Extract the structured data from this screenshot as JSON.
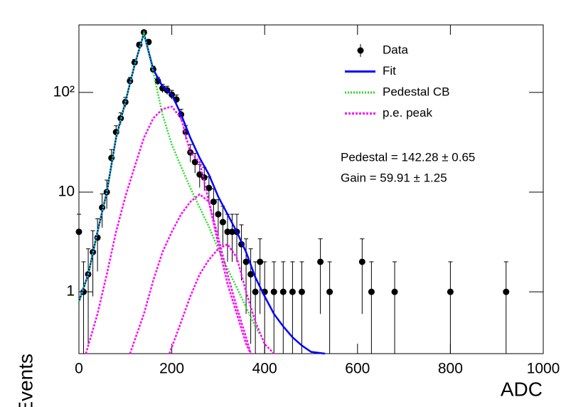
{
  "chart_data": {
    "type": "line",
    "x_label": "ADC",
    "y_label": "Events",
    "log_y": true,
    "xlim": [
      0,
      1000
    ],
    "ylim": [
      0.24,
      475
    ],
    "xticks": [
      0,
      200,
      400,
      600,
      800,
      1000
    ],
    "yticks": [
      1,
      10,
      {
        "value": 100,
        "label": "10²"
      }
    ],
    "legend": "upper right",
    "annotations": [
      "Pedestal = 142.28 ± 0.65",
      "Gain = 59.91 ± 1.25"
    ],
    "series": [
      {
        "name": "Data",
        "type": "errorbar",
        "color": "#000000",
        "x": [
          0,
          10,
          20,
          30,
          40,
          50,
          60,
          70,
          80,
          90,
          100,
          110,
          120,
          130,
          140,
          150,
          160,
          170,
          180,
          190,
          200,
          210,
          220,
          230,
          240,
          250,
          260,
          270,
          280,
          290,
          300,
          310,
          320,
          330,
          340,
          350,
          360,
          370,
          380,
          390,
          400,
          420,
          440,
          460,
          480,
          520,
          540,
          610,
          630,
          680,
          800,
          920
        ],
        "values": [
          4,
          1,
          1.5,
          2.5,
          3.5,
          7,
          10,
          22,
          40,
          55,
          80,
          130,
          200,
          300,
          400,
          320,
          170,
          130,
          110,
          105,
          95,
          85,
          60,
          40,
          25,
          20,
          15,
          14,
          11,
          8,
          6,
          5,
          4,
          4,
          4,
          3,
          2,
          1.5,
          1,
          2,
          1,
          1,
          1,
          1,
          1,
          2,
          1,
          2,
          1,
          1,
          1,
          1
        ],
        "errors": [
          2,
          1,
          1.2,
          1.6,
          1.9,
          2.6,
          3.2,
          4.7,
          6.3,
          7.4,
          9,
          11.4,
          14,
          17,
          20,
          18,
          13,
          11.4,
          10.5,
          10.2,
          9.7,
          9.2,
          7.7,
          6.3,
          5,
          4.5,
          3.9,
          3.7,
          3.3,
          2.8,
          2.4,
          2.2,
          2,
          2,
          2,
          1.7,
          1.4,
          1.2,
          1,
          1.4,
          1,
          1,
          1,
          1,
          1,
          1.4,
          1,
          1.4,
          1,
          1,
          1,
          1
        ]
      },
      {
        "name": "Fit",
        "type": "line",
        "color": "#0000ff",
        "dash": "none",
        "x": [
          0,
          20,
          40,
          60,
          80,
          100,
          120,
          140,
          160,
          180,
          200,
          220,
          240,
          260,
          280,
          300,
          320,
          340,
          360,
          380,
          400,
          420,
          440,
          460,
          480,
          500,
          530
        ],
        "values": [
          0.8,
          1.5,
          4,
          10,
          35,
          80,
          190,
          390,
          170,
          115,
          95,
          60,
          35,
          22,
          15,
          9,
          6,
          4,
          2.5,
          1.4,
          0.9,
          0.6,
          0.45,
          0.35,
          0.29,
          0.25,
          0.24
        ]
      },
      {
        "name": "Pedestal CB",
        "type": "line",
        "color": "#22dd22",
        "dash": "2 2",
        "x": [
          0,
          20,
          40,
          60,
          80,
          100,
          120,
          140,
          160,
          180,
          200,
          220,
          240,
          260,
          280,
          300,
          320,
          340,
          360,
          380,
          390
        ],
        "values": [
          0.8,
          1.5,
          4,
          10,
          35,
          80,
          190,
          390,
          160,
          60,
          30,
          18,
          11,
          7,
          4.5,
          2.7,
          1.7,
          1.1,
          0.7,
          0.45,
          0.37
        ]
      },
      {
        "name": "p.e. peak",
        "type": "line",
        "color": "#ff00ff",
        "dash": "3 2",
        "x": [
          15,
          40,
          60,
          80,
          100,
          120,
          140,
          160,
          180,
          200,
          220,
          240,
          260,
          280,
          300,
          320,
          340,
          360,
          370,
          null,
          110,
          140,
          160,
          180,
          200,
          220,
          240,
          260,
          280,
          300,
          320,
          340,
          360,
          370,
          null,
          195,
          220,
          240,
          260,
          280,
          300,
          320,
          340,
          360,
          380,
          400,
          420
        ],
        "values": [
          0.24,
          0.6,
          1.5,
          4,
          9,
          18,
          35,
          55,
          68,
          72,
          55,
          25,
          20,
          8,
          3.5,
          1.5,
          0.7,
          0.35,
          0.24,
          null,
          0.24,
          0.6,
          1.3,
          2.5,
          4,
          6,
          8,
          9.5,
          8,
          3,
          1.2,
          0.6,
          0.3,
          0.24,
          null,
          0.24,
          0.5,
          0.9,
          1.5,
          2.1,
          2.7,
          3,
          2.2,
          1,
          0.5,
          0.3,
          0.24
        ]
      }
    ]
  }
}
